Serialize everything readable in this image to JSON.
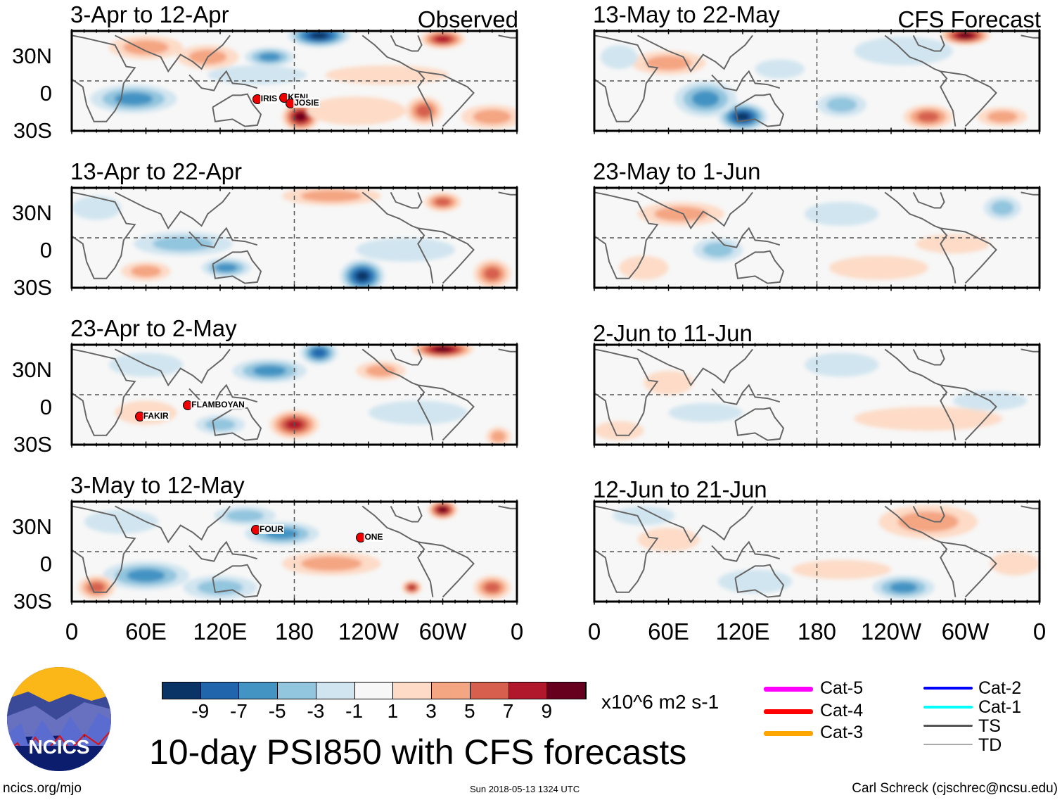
{
  "panels": {
    "left": [
      {
        "title": "3-Apr to 12-Apr",
        "tag": "Observed"
      },
      {
        "title": "13-Apr to 22-Apr"
      },
      {
        "title": "23-Apr to 2-May"
      },
      {
        "title": "3-May to 12-May"
      }
    ],
    "right": [
      {
        "title": "13-May to 22-May",
        "tag": "CFS Forecast"
      },
      {
        "title": "23-May to 1-Jun"
      },
      {
        "title": "2-Jun to 11-Jun"
      },
      {
        "title": "12-Jun to 21-Jun"
      }
    ]
  },
  "lat_labels": [
    "30N",
    "0",
    "30S"
  ],
  "lon_labels": [
    "0",
    "60E",
    "120E",
    "180",
    "120W",
    "60W",
    "0"
  ],
  "storms": [
    {
      "panel": 0,
      "name": "IRIS",
      "lon": 150,
      "lat": -15
    },
    {
      "panel": 0,
      "name": "KENI",
      "lon": 172,
      "lat": -14
    },
    {
      "panel": 0,
      "name": "JOSIE",
      "lon": 177,
      "lat": -19
    },
    {
      "panel": 2,
      "name": "FAKIR",
      "lon": 55,
      "lat": -18
    },
    {
      "panel": 2,
      "name": "FLAMBOYAN",
      "lon": 94,
      "lat": -9
    },
    {
      "panel": 3,
      "name": "FOUR",
      "lon": 149,
      "lat": 18
    },
    {
      "panel": 3,
      "name": "ONE",
      "lon": 234,
      "lat": 12
    }
  ],
  "colorbar": {
    "labels": [
      "-9",
      "-7",
      "-5",
      "-3",
      "-1",
      "1",
      "3",
      "5",
      "7",
      "9"
    ],
    "colors": [
      "#0a3466",
      "#2166ac",
      "#4393c3",
      "#92c5de",
      "#d1e5f0",
      "#f7f7f7",
      "#fddbc7",
      "#f4a582",
      "#d6604d",
      "#b2182b",
      "#67001f"
    ],
    "units": "x10^6 m2 s-1"
  },
  "legend": [
    {
      "label": "Cat-5",
      "color": "#ff00ff"
    },
    {
      "label": "Cat-4",
      "color": "#ff0000"
    },
    {
      "label": "Cat-3",
      "color": "#ffa500"
    },
    {
      "label": "Cat-2",
      "color": "#0000ff"
    },
    {
      "label": "Cat-1",
      "color": "#00ffff"
    },
    {
      "label": "TS",
      "color": "#555555"
    },
    {
      "label": "TD",
      "color": "#aaaaaa"
    }
  ],
  "title": "10-day PSI850 with CFS forecasts",
  "logo_text": "NCICS",
  "footer": {
    "left": "ncics.org/mjo",
    "center": "Sun 2018-05-13 1324 UTC",
    "right": "Carl Schreck (cjschrec@ncsu.edu)"
  }
}
